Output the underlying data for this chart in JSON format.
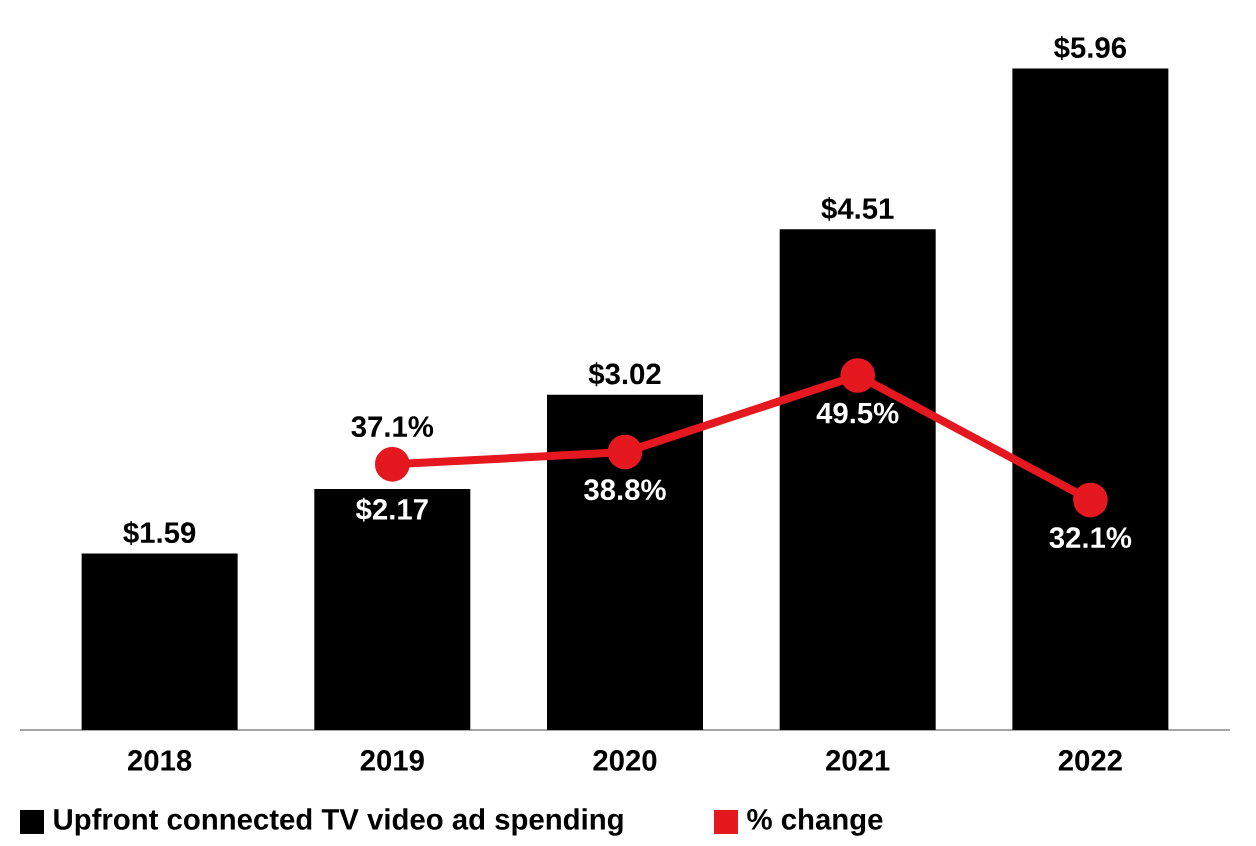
{
  "chart_data": {
    "type": "bar",
    "categories": [
      "2018",
      "2019",
      "2020",
      "2021",
      "2022"
    ],
    "series": [
      {
        "name": "Upfront connected TV video ad spending",
        "color": "#000000",
        "values": [
          1.59,
          2.17,
          3.02,
          4.51,
          5.96
        ],
        "value_labels": [
          "$1.59",
          "$2.17",
          "$3.02",
          "$4.51",
          "$5.96"
        ]
      },
      {
        "name": "% change",
        "type": "line",
        "axis": "y2",
        "color": "#e5171f",
        "values": [
          null,
          37.1,
          38.8,
          49.5,
          32.1
        ],
        "value_labels": [
          null,
          "37.1%",
          "38.8%",
          "49.5%",
          "32.1%"
        ]
      }
    ],
    "ylim": [
      0,
      6
    ],
    "y2lim": [
      0,
      93
    ],
    "tick_labels": "x",
    "legend": "bottom",
    "marker": "circle"
  }
}
